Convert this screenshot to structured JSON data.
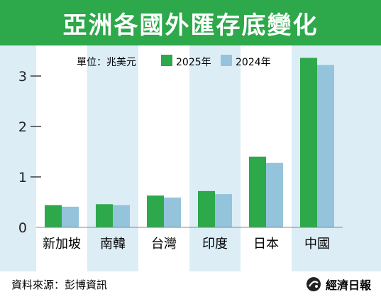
{
  "title": "亞洲各國外匯存底變化",
  "footer": {
    "source": "資料來源：彭博資訊",
    "publisher": "經濟日報"
  },
  "chart_data": {
    "type": "bar",
    "title": "亞洲各國外匯存底變化",
    "unit_label": "單位：兆美元",
    "categories": [
      "新加坡",
      "南韓",
      "台灣",
      "印度",
      "日本",
      "中國"
    ],
    "series": [
      {
        "name": "2025年",
        "color": "#2da84a",
        "values": [
          0.44,
          0.46,
          0.63,
          0.72,
          1.4,
          3.36
        ]
      },
      {
        "name": "2024年",
        "color": "#93c4dc",
        "values": [
          0.41,
          0.44,
          0.59,
          0.66,
          1.28,
          3.22
        ]
      }
    ],
    "ylim": [
      0,
      3.5
    ],
    "yticks": [
      0,
      1,
      2,
      3
    ],
    "grid": false,
    "legend": "top"
  }
}
